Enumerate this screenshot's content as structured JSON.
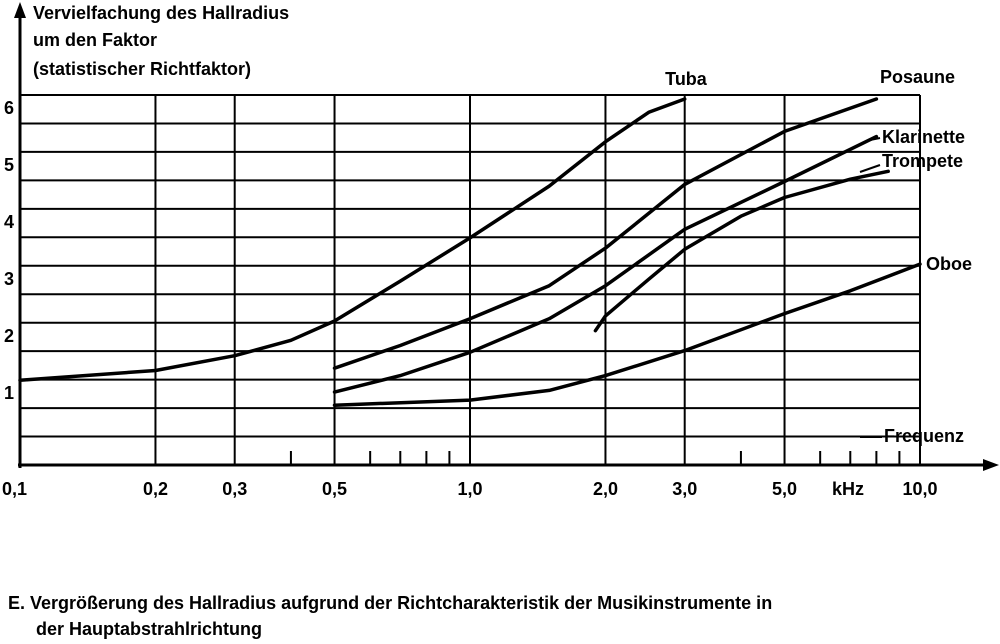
{
  "chart_data": {
    "type": "line",
    "ylabel": [
      "Vervielfachung des Hallradius",
      "um den Faktor",
      "(statistischer Richtfaktor)"
    ],
    "xlabel": "Frequenz",
    "xunit": "kHz",
    "xlog": true,
    "xlim": [
      0.1,
      10
    ],
    "xticks": [
      {
        "value": 0.1,
        "label": "0,1"
      },
      {
        "value": 0.2,
        "label": "0,2"
      },
      {
        "value": 0.3,
        "label": "0,3"
      },
      {
        "value": 0.5,
        "label": "0,5"
      },
      {
        "value": 1,
        "label": "1,0"
      },
      {
        "value": 2,
        "label": "2,0"
      },
      {
        "value": 3,
        "label": "3,0"
      },
      {
        "value": 5,
        "label": "5,0"
      },
      {
        "value": 10,
        "label": "10,0"
      }
    ],
    "xminor": [
      0.4,
      0.6,
      0.7,
      0.8,
      0.9,
      4,
      6,
      7,
      8,
      9
    ],
    "ylim": [
      0,
      6.5
    ],
    "yticks": [
      1,
      2,
      3,
      4,
      5,
      6
    ],
    "yminor": [
      0.5,
      1.5,
      2.5,
      3.5,
      4.5,
      5.5,
      6.5
    ],
    "grid": true,
    "series": [
      {
        "name": "Tuba",
        "color": "#000000",
        "x": [
          0.1,
          0.2,
          0.3,
          0.4,
          0.5,
          0.7,
          1.0,
          1.5,
          2.0,
          2.5,
          3.0
        ],
        "values": [
          1.49,
          1.66,
          1.92,
          2.19,
          2.53,
          3.23,
          3.99,
          4.9,
          5.68,
          6.2,
          6.43
        ]
      },
      {
        "name": "Posaune",
        "color": "#000000",
        "x": [
          0.5,
          0.7,
          1.0,
          1.5,
          2.0,
          3.0,
          5.0,
          8.0
        ],
        "values": [
          1.7,
          2.1,
          2.57,
          3.15,
          3.81,
          4.93,
          5.86,
          6.43
        ]
      },
      {
        "name": "Klarinette",
        "color": "#000000",
        "x": [
          0.5,
          0.7,
          1.0,
          1.5,
          2.0,
          3.0,
          5.0,
          8.0
        ],
        "values": [
          1.28,
          1.57,
          1.98,
          2.57,
          3.15,
          4.14,
          4.98,
          5.77
        ]
      },
      {
        "name": "Trompete",
        "color": "#000000",
        "x": [
          1.9,
          2.0,
          2.5,
          3.0,
          4.0,
          5.0,
          7.0,
          8.5
        ],
        "values": [
          2.36,
          2.62,
          3.27,
          3.79,
          4.37,
          4.7,
          5.02,
          5.16
        ]
      },
      {
        "name": "Oboe",
        "color": "#000000",
        "x": [
          0.5,
          1.0,
          1.5,
          2.0,
          3.0,
          5.0,
          7.0,
          10.0
        ],
        "values": [
          1.05,
          1.14,
          1.31,
          1.57,
          2.01,
          2.66,
          3.06,
          3.53
        ]
      }
    ],
    "caption": [
      "E. Vergrößerung des Hallradius  aufgrund der Richtcharakteristik der Musikinstrumente in",
      "der Hauptabstrahlrichtung"
    ]
  }
}
